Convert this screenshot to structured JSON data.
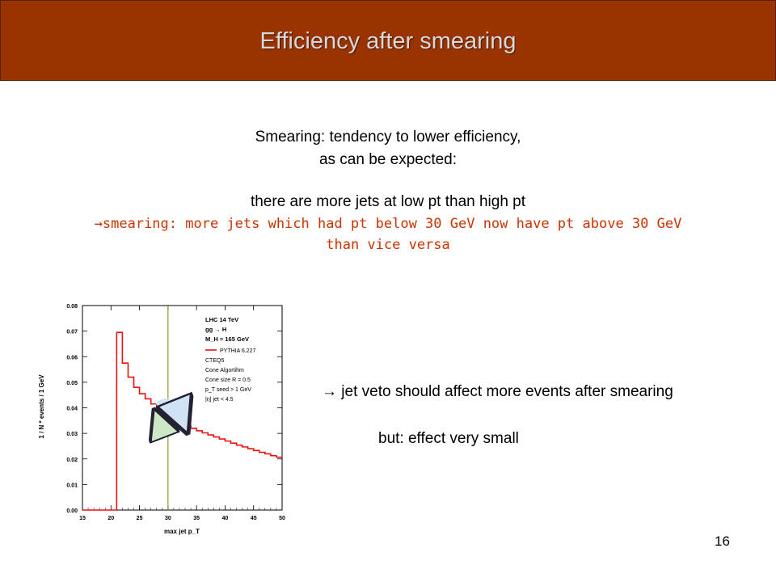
{
  "header": {
    "title": "Efficiency after smearing"
  },
  "intro": {
    "line1": "Smearing: tendency to lower efficiency,",
    "line2": "as can be expected:",
    "line3": "there are more jets at low pt than high pt",
    "line4": "→smearing: more jets which had pt below 30 GeV now have pt above 30 GeV",
    "line5": "than vice versa"
  },
  "notes": {
    "note1": "→ jet veto should affect more events after smearing",
    "note2": "but: effect very small"
  },
  "page_number": "16",
  "colors": {
    "header_bg": "#993300",
    "highlight_text": "#cc3300",
    "histogram": "#ee1111",
    "cut_line": "#808000"
  },
  "chart_data": {
    "type": "histogram",
    "xlabel": "max jet p_T",
    "ylabel": "1 / N  *  events / 1 GeV",
    "xlim": [
      15,
      50
    ],
    "ylim": [
      0,
      0.08
    ],
    "x_ticks": [
      "15",
      "20",
      "25",
      "30",
      "35",
      "40",
      "45",
      "50"
    ],
    "y_ticks": [
      "0.00",
      "0.01",
      "0.02",
      "0.03",
      "0.04",
      "0.05",
      "0.06",
      "0.07",
      "0.08"
    ],
    "bin_edges": [
      15,
      16,
      17,
      18,
      19,
      20,
      21,
      22,
      23,
      24,
      25,
      26,
      27,
      28,
      29,
      30,
      31,
      32,
      33,
      34,
      35,
      36,
      37,
      38,
      39,
      40,
      41,
      42,
      43,
      44,
      45,
      46,
      47,
      48,
      49,
      50
    ],
    "values": [
      0,
      0,
      0,
      0,
      0,
      0,
      0.0695,
      0.0575,
      0.052,
      0.048,
      0.0455,
      0.0435,
      0.0415,
      0.04,
      0.0385,
      0.037,
      0.0355,
      0.034,
      0.033,
      0.032,
      0.031,
      0.0302,
      0.0294,
      0.0286,
      0.0278,
      0.027,
      0.0262,
      0.0254,
      0.0247,
      0.024,
      0.0233,
      0.0226,
      0.022,
      0.0213,
      0.0207
    ],
    "cut_x": 30,
    "legend": {
      "title_lines": [
        "LHC 14 TeV",
        "gg → H",
        "M_H = 165 GeV"
      ],
      "series_name": "PYTHIA 6.227",
      "info_lines": [
        "CTEQ5",
        "Cone Algortihm",
        "Cone size R = 0.5",
        "p_T seed > 1 GeV",
        "|η| jet < 4.5"
      ]
    }
  }
}
